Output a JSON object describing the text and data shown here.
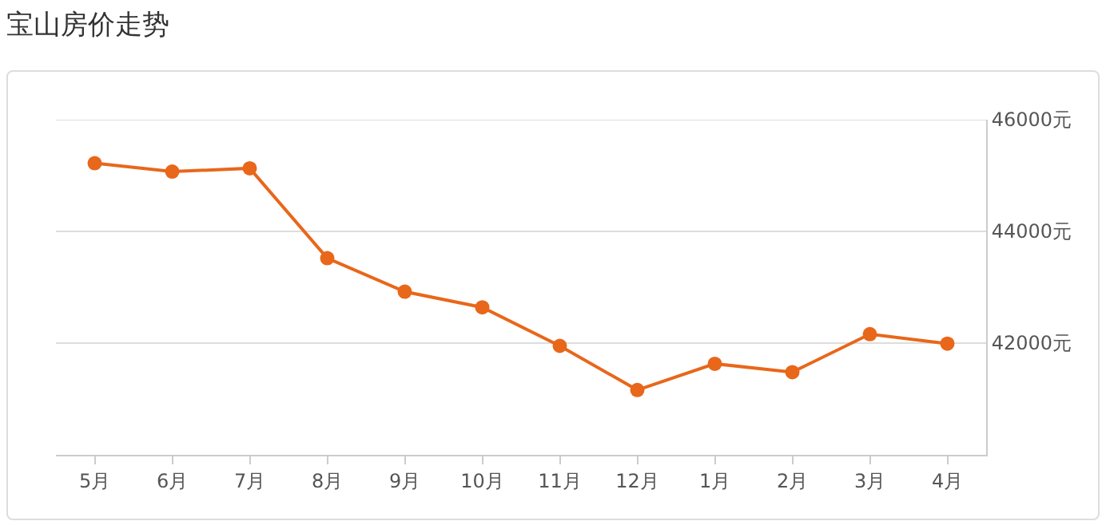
{
  "chart_data": {
    "type": "line",
    "title": "宝山房价走势",
    "categories": [
      "5月",
      "6月",
      "7月",
      "8月",
      "9月",
      "10月",
      "11月",
      "12月",
      "1月",
      "2月",
      "3月",
      "4月"
    ],
    "series": [
      {
        "color": "#e8671a",
        "values": [
          45220,
          45070,
          45130,
          43520,
          42920,
          42640,
          41950,
          41160,
          41630,
          41480,
          42160,
          41990
        ]
      }
    ],
    "ylim": [
      40000,
      46000
    ],
    "yticks": [
      {
        "value": 42000,
        "label": "42000元"
      },
      {
        "value": 44000,
        "label": "44000元"
      },
      {
        "value": 46000,
        "label": "46000元"
      }
    ],
    "grid": "y",
    "marker": "circle",
    "line_style": "solid"
  }
}
